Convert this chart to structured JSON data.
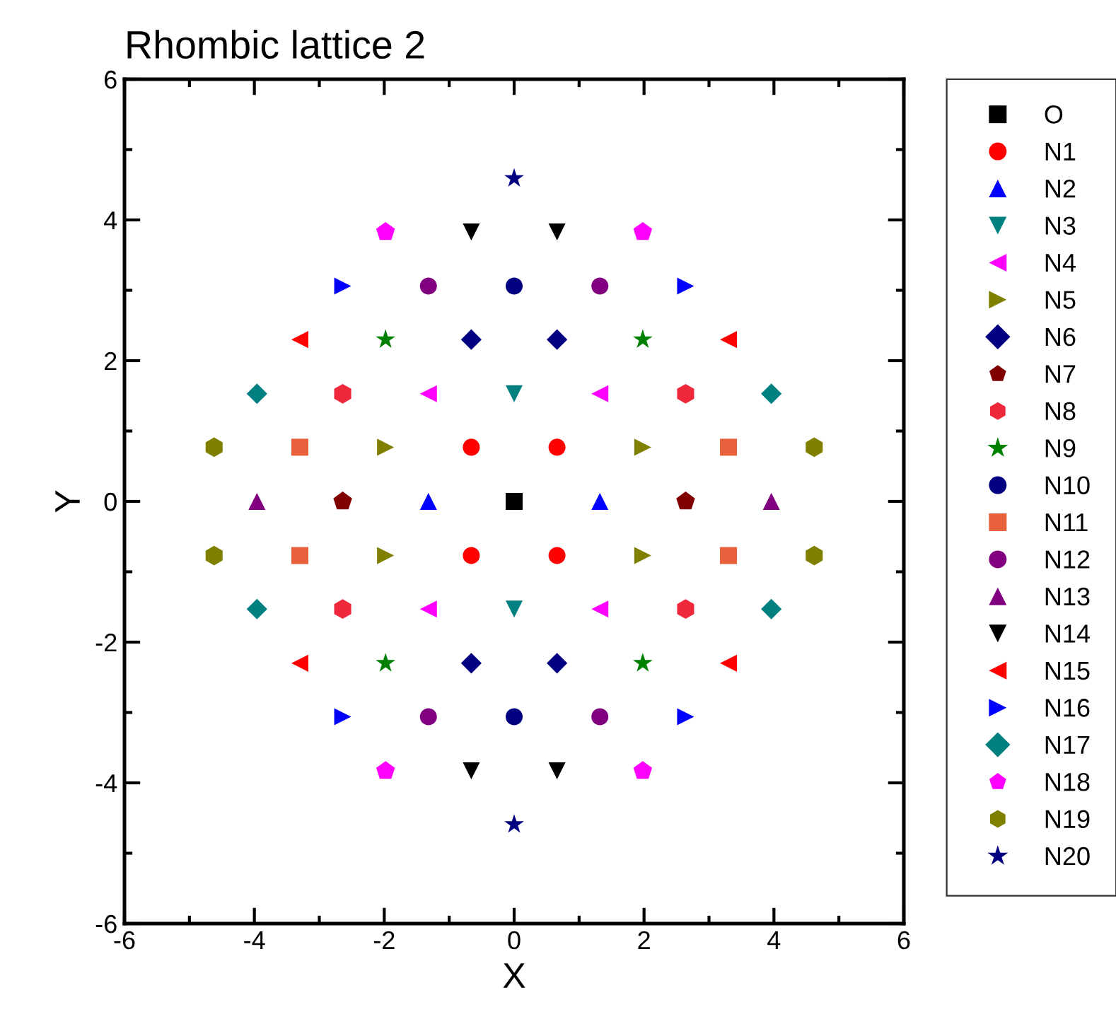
{
  "chart_data": {
    "type": "scatter",
    "title": "Rhombic lattice 2",
    "xlabel": "X",
    "ylabel": "Y",
    "xlim": [
      -6,
      6
    ],
    "ylim": [
      -6,
      6
    ],
    "xticks": [
      -6,
      -4,
      -2,
      0,
      2,
      4,
      6
    ],
    "yticks": [
      -6,
      -4,
      -2,
      0,
      2,
      4,
      6
    ],
    "grid": false,
    "legend": "right",
    "series": [
      {
        "name": "O",
        "color": "#000000",
        "marker": "square",
        "x": [
          0
        ],
        "values": [
          0
        ]
      },
      {
        "name": "N1",
        "color": "#ff0000",
        "marker": "circle",
        "x": [
          0.66,
          -0.66,
          0.66,
          -0.66
        ],
        "values": [
          0.77,
          0.77,
          -0.77,
          -0.77
        ]
      },
      {
        "name": "N2",
        "color": "#0000ff",
        "marker": "triangle",
        "x": [
          1.32,
          -1.32
        ],
        "values": [
          0,
          0
        ]
      },
      {
        "name": "N3",
        "color": "#008080",
        "marker": "triangle-down",
        "x": [
          0,
          0
        ],
        "values": [
          1.53,
          -1.53
        ]
      },
      {
        "name": "N4",
        "color": "#ff00ff",
        "marker": "triangle-left",
        "x": [
          1.32,
          -1.32,
          1.32,
          -1.32
        ],
        "values": [
          1.53,
          1.53,
          -1.53,
          -1.53
        ]
      },
      {
        "name": "N5",
        "color": "#808000",
        "marker": "triangle-right",
        "x": [
          1.98,
          -1.98,
          1.98,
          -1.98
        ],
        "values": [
          0.77,
          0.77,
          -0.77,
          -0.77
        ]
      },
      {
        "name": "N6",
        "color": "#000080",
        "marker": "diamond",
        "x": [
          0.66,
          -0.66,
          0.66,
          -0.66
        ],
        "values": [
          2.3,
          2.3,
          -2.3,
          -2.3
        ]
      },
      {
        "name": "N7",
        "color": "#800000",
        "x": [
          2.64,
          -2.64
        ],
        "values": [
          0,
          0
        ]
      },
      {
        "name": "N8",
        "color": "#f0283c",
        "x": [
          2.64,
          -2.64,
          2.64,
          -2.64
        ],
        "values": [
          1.53,
          1.53,
          -1.53,
          -1.53
        ]
      },
      {
        "name": "N9",
        "color": "#008000",
        "marker": "star",
        "x": [
          1.98,
          -1.98,
          1.98,
          -1.98
        ],
        "values": [
          2.3,
          2.3,
          -2.3,
          -2.3
        ]
      },
      {
        "name": "N10",
        "color": "#000080",
        "marker": "circle",
        "x": [
          0,
          0
        ],
        "values": [
          3.06,
          -3.06
        ]
      },
      {
        "name": "N11",
        "color": "#e8603c",
        "marker": "square",
        "x": [
          3.3,
          -3.3,
          3.3,
          -3.3
        ],
        "values": [
          0.77,
          0.77,
          -0.77,
          -0.77
        ]
      },
      {
        "name": "N12",
        "color": "#800080",
        "marker": "circle",
        "x": [
          1.32,
          -1.32,
          1.32,
          -1.32
        ],
        "values": [
          3.06,
          3.06,
          -3.06,
          -3.06
        ]
      },
      {
        "name": "N13",
        "color": "#800080",
        "marker": "triangle",
        "x": [
          3.96,
          -3.96
        ],
        "values": [
          0,
          0
        ]
      },
      {
        "name": "N14",
        "color": "#000000",
        "marker": "triangle-down",
        "x": [
          0.66,
          -0.66,
          0.66,
          -0.66
        ],
        "values": [
          3.83,
          3.83,
          -3.83,
          -3.83
        ]
      },
      {
        "name": "N15",
        "color": "#ff0000",
        "marker": "triangle-left",
        "x": [
          3.3,
          -3.3,
          3.3,
          -3.3
        ],
        "values": [
          2.3,
          2.3,
          -2.3,
          -2.3
        ]
      },
      {
        "name": "N16",
        "color": "#0000ff",
        "marker": "triangle-right",
        "x": [
          2.64,
          -2.64,
          2.64,
          -2.64
        ],
        "values": [
          3.06,
          3.06,
          -3.06,
          -3.06
        ]
      },
      {
        "name": "N17",
        "color": "#008080",
        "marker": "diamond",
        "x": [
          3.96,
          -3.96,
          3.96,
          -3.96
        ],
        "values": [
          1.53,
          1.53,
          -1.53,
          -1.53
        ]
      },
      {
        "name": "N18",
        "color": "#ff00ff",
        "x": [
          1.98,
          -1.98,
          1.98,
          -1.98
        ],
        "values": [
          3.83,
          3.83,
          -3.83,
          -3.83
        ]
      },
      {
        "name": "N19",
        "color": "#808000",
        "x": [
          4.62,
          -4.62,
          4.62,
          -4.62
        ],
        "values": [
          0.77,
          0.77,
          -0.77,
          -0.77
        ]
      },
      {
        "name": "N20",
        "color": "#000080",
        "marker": "star",
        "x": [
          0,
          0
        ],
        "values": [
          4.59,
          -4.59
        ]
      }
    ]
  }
}
